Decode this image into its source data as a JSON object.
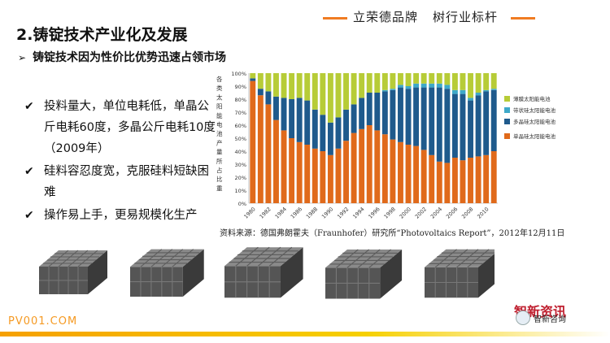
{
  "header": {
    "slogan_left": "立荣德品牌",
    "slogan_right": "树行业标杆"
  },
  "title": "2.铸锭技术产业化及发展",
  "subtitle": "铸锭技术因为性价比优势迅速占领市场",
  "bullets": [
    "投料量大，单位电耗低，单晶公斤电耗60度，多晶公斤电耗10度（2009年）",
    "硅料容忍度宽，克服硅料短缺困难",
    "操作易上手，更易规模化生产"
  ],
  "source": "资料来源：德国弗朗霍夫（Fraunhofer）研究所“Photovoltaics Report”，2012年12月11日",
  "footer": {
    "brand": "PV001.COM",
    "watermark_top": "智新资讯",
    "watermark_bottom": "智新咨询"
  },
  "colors": {
    "accent": "#f07c22",
    "mono": "#e06a1b",
    "multi": "#1f5a8c",
    "ribbon": "#3ea9c9",
    "thin": "#b7cc37"
  },
  "chart_data": {
    "type": "bar",
    "stacked": true,
    "ylabel": "各类太阳能电池产量所占比重",
    "yticks": [
      "0%",
      "10%",
      "20%",
      "30%",
      "40%",
      "50%",
      "60%",
      "70%",
      "80%",
      "90%",
      "100%"
    ],
    "ylim": [
      0,
      100
    ],
    "x_tick_labels": [
      "1980",
      "1982",
      "1984",
      "1986",
      "1988",
      "1990",
      "1992",
      "1994",
      "1996",
      "1998",
      "2000",
      "2002",
      "2004",
      "2006",
      "2008",
      "2010"
    ],
    "categories": [
      "1980",
      "1981",
      "1982",
      "1983",
      "1984",
      "1985",
      "1986",
      "1987",
      "1988",
      "1989",
      "1990",
      "1991",
      "1992",
      "1993",
      "1994",
      "1995",
      "1996",
      "1997",
      "1998",
      "1999",
      "2000",
      "2001",
      "2002",
      "2003",
      "2004",
      "2005",
      "2006",
      "2007",
      "2008",
      "2009",
      "2010",
      "2011"
    ],
    "legend_position": "right",
    "series": [
      {
        "name": "单晶硅太阳能电池",
        "color": "#e06a1b",
        "values": [
          94,
          83,
          76,
          64,
          56,
          50,
          47,
          45,
          42,
          40,
          37,
          42,
          48,
          54,
          57,
          60,
          56,
          53,
          49,
          47,
          45,
          44,
          41,
          37,
          32,
          31,
          35,
          33,
          35,
          36,
          37,
          40
        ]
      },
      {
        "name": "多晶硅太阳能电池",
        "color": "#1f5a8c",
        "values": [
          2,
          5,
          10,
          18,
          25,
          30,
          34,
          34,
          30,
          28,
          25,
          24,
          24,
          22,
          24,
          25,
          29,
          33,
          38,
          42,
          43,
          45,
          48,
          52,
          57,
          57,
          49,
          51,
          44,
          47,
          49,
          47
        ]
      },
      {
        "name": "带状硅太阳能电池",
        "color": "#3ea9c9",
        "values": [
          0,
          0,
          0,
          0,
          0,
          0,
          0,
          0,
          0,
          0,
          0,
          0,
          0,
          0,
          0,
          0,
          0,
          1,
          1,
          2,
          2,
          3,
          3,
          3,
          3,
          3,
          3,
          3,
          2,
          2,
          1,
          1
        ]
      },
      {
        "name": "薄膜太阳能电池",
        "color": "#b7cc37",
        "values": [
          4,
          12,
          14,
          18,
          19,
          20,
          19,
          21,
          28,
          32,
          38,
          34,
          28,
          24,
          19,
          15,
          15,
          13,
          12,
          9,
          10,
          8,
          8,
          8,
          8,
          9,
          13,
          13,
          19,
          15,
          13,
          12
        ]
      }
    ]
  }
}
